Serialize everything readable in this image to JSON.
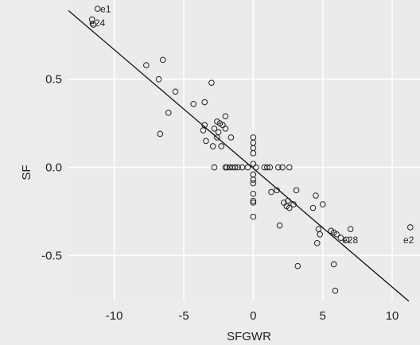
{
  "chart_data": {
    "type": "scatter",
    "xlabel": "SFGWR",
    "ylabel": "SF",
    "xlim": [
      -13.3,
      12.0
    ],
    "ylim": [
      -0.76,
      0.95
    ],
    "xticks": [
      -10,
      -5,
      0,
      5,
      10
    ],
    "xtick_labels": [
      "-10",
      "-5",
      "0",
      "5",
      "10"
    ],
    "yticks": [
      -0.5,
      0.0,
      0.5
    ],
    "ytick_labels": [
      "-0.5",
      "0.0",
      "0.5"
    ],
    "grid": true,
    "colors": {
      "background": "#ececec",
      "panel": "#ebebeb",
      "grid": "#ffffff",
      "point": "#222222",
      "line": "#111111"
    },
    "fit_line": {
      "x": [
        -13.3,
        11.2
      ],
      "y": [
        0.89,
        -0.76
      ]
    },
    "annotations": [
      {
        "text": "e1",
        "x": -11.0,
        "y": 0.88
      },
      {
        "text": "e24",
        "x": -11.8,
        "y": 0.8
      },
      {
        "text": "e28",
        "x": 6.4,
        "y": -0.43
      },
      {
        "text": "e2",
        "x": 10.8,
        "y": -0.43
      }
    ],
    "points": [
      [
        -11.2,
        0.9
      ],
      [
        -11.6,
        0.84
      ],
      [
        -11.5,
        0.81
      ],
      [
        -7.7,
        0.58
      ],
      [
        -6.5,
        0.61
      ],
      [
        -6.8,
        0.5
      ],
      [
        -5.6,
        0.43
      ],
      [
        -6.1,
        0.31
      ],
      [
        -6.7,
        0.19
      ],
      [
        -4.3,
        0.36
      ],
      [
        -3.5,
        0.37
      ],
      [
        -3.0,
        0.48
      ],
      [
        -3.5,
        0.24
      ],
      [
        -3.6,
        0.21
      ],
      [
        -3.4,
        0.15
      ],
      [
        -2.6,
        0.26
      ],
      [
        -2.4,
        0.25
      ],
      [
        -2.2,
        0.24
      ],
      [
        -2.8,
        0.22
      ],
      [
        -2.5,
        0.2
      ],
      [
        -2.6,
        0.17
      ],
      [
        -2.0,
        0.29
      ],
      [
        -2.0,
        0.22
      ],
      [
        -1.6,
        0.17
      ],
      [
        -2.9,
        0.12
      ],
      [
        -2.3,
        0.12
      ],
      [
        -2.8,
        0.0
      ],
      [
        -2.0,
        0.0
      ],
      [
        -1.9,
        0.0
      ],
      [
        -1.7,
        0.0
      ],
      [
        -1.5,
        0.0
      ],
      [
        -1.3,
        0.0
      ],
      [
        -1.1,
        0.0
      ],
      [
        -0.8,
        0.0
      ],
      [
        -0.4,
        0.0
      ],
      [
        0.0,
        0.17
      ],
      [
        0.0,
        0.14
      ],
      [
        0.0,
        0.11
      ],
      [
        0.0,
        0.08
      ],
      [
        0.0,
        0.02
      ],
      [
        0.0,
        -0.04
      ],
      [
        0.0,
        -0.07
      ],
      [
        0.0,
        -0.09
      ],
      [
        0.0,
        -0.15
      ],
      [
        0.0,
        -0.19
      ],
      [
        0.0,
        -0.2
      ],
      [
        0.0,
        -0.28
      ],
      [
        0.2,
        0.0
      ],
      [
        0.8,
        0.0
      ],
      [
        1.0,
        0.0
      ],
      [
        1.2,
        0.0
      ],
      [
        1.8,
        0.0
      ],
      [
        2.1,
        0.0
      ],
      [
        2.6,
        0.0
      ],
      [
        1.3,
        -0.14
      ],
      [
        1.7,
        -0.13
      ],
      [
        2.2,
        -0.2
      ],
      [
        2.5,
        -0.19
      ],
      [
        2.4,
        -0.22
      ],
      [
        2.6,
        -0.23
      ],
      [
        2.9,
        -0.21
      ],
      [
        3.1,
        -0.13
      ],
      [
        1.9,
        -0.33
      ],
      [
        3.2,
        -0.56
      ],
      [
        4.3,
        -0.23
      ],
      [
        4.5,
        -0.16
      ],
      [
        5.0,
        -0.21
      ],
      [
        4.7,
        -0.35
      ],
      [
        4.8,
        -0.38
      ],
      [
        4.6,
        -0.43
      ],
      [
        5.6,
        -0.36
      ],
      [
        5.8,
        -0.37
      ],
      [
        6.0,
        -0.38
      ],
      [
        6.3,
        -0.4
      ],
      [
        6.7,
        -0.41
      ],
      [
        7.0,
        -0.35
      ],
      [
        5.8,
        -0.55
      ],
      [
        5.9,
        -0.7
      ],
      [
        11.3,
        -0.34
      ]
    ]
  }
}
